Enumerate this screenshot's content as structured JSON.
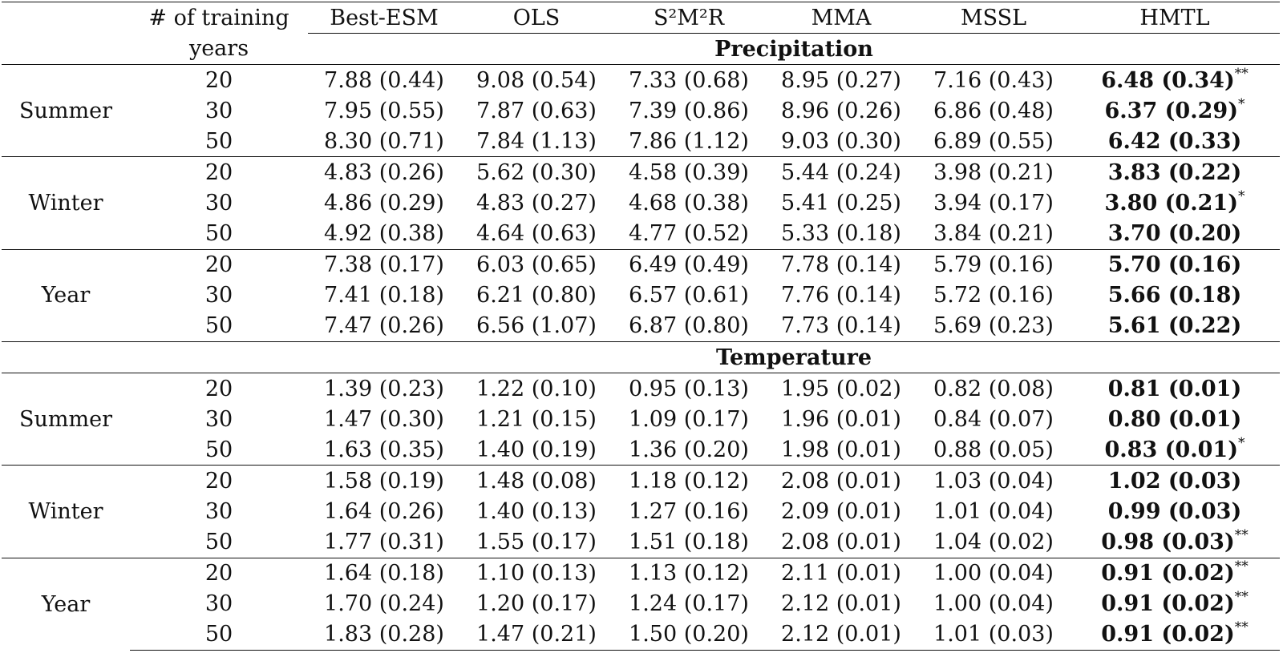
{
  "header": {
    "training_years_line1": "# of training",
    "training_years_line2": "years",
    "methods": [
      "Best-ESM",
      "OLS",
      "S²M²R",
      "MMA",
      "MSSL",
      "HMTL"
    ]
  },
  "sections": [
    {
      "title": "Precipitation",
      "groups": [
        {
          "season": "Summer",
          "rows": [
            {
              "years": "20",
              "values": [
                "7.88 (0.44)",
                "9.08 (0.54)",
                "7.33 (0.68)",
                "8.95 (0.27)",
                "7.16 (0.43)"
              ],
              "best": "6.48 (0.34)",
              "mark": "**"
            },
            {
              "years": "30",
              "values": [
                "7.95 (0.55)",
                "7.87 (0.63)",
                "7.39 (0.86)",
                "8.96 (0.26)",
                "6.86 (0.48)"
              ],
              "best": "6.37 (0.29)",
              "mark": "*"
            },
            {
              "years": "50",
              "values": [
                "8.30 (0.71)",
                "7.84 (1.13)",
                "7.86 (1.12)",
                "9.03 (0.30)",
                "6.89 (0.55)"
              ],
              "best": "6.42 (0.33)",
              "mark": ""
            }
          ]
        },
        {
          "season": "Winter",
          "rows": [
            {
              "years": "20",
              "values": [
                "4.83 (0.26)",
                "5.62 (0.30)",
                "4.58 (0.39)",
                "5.44 (0.24)",
                "3.98 (0.21)"
              ],
              "best": "3.83 (0.22)",
              "mark": ""
            },
            {
              "years": "30",
              "values": [
                "4.86 (0.29)",
                "4.83 (0.27)",
                "4.68 (0.38)",
                "5.41 (0.25)",
                "3.94 (0.17)"
              ],
              "best": "3.80 (0.21)",
              "mark": "*"
            },
            {
              "years": "50",
              "values": [
                "4.92 (0.38)",
                "4.64 (0.63)",
                "4.77 (0.52)",
                "5.33 (0.18)",
                "3.84 (0.21)"
              ],
              "best": "3.70 (0.20)",
              "mark": ""
            }
          ]
        },
        {
          "season": "Year",
          "rows": [
            {
              "years": "20",
              "values": [
                "7.38 (0.17)",
                "6.03 (0.65)",
                "6.49 (0.49)",
                "7.78 (0.14)",
                "5.79 (0.16)"
              ],
              "best": "5.70 (0.16)",
              "mark": ""
            },
            {
              "years": "30",
              "values": [
                "7.41 (0.18)",
                "6.21 (0.80)",
                "6.57 (0.61)",
                "7.76 (0.14)",
                "5.72 (0.16)"
              ],
              "best": "5.66 (0.18)",
              "mark": ""
            },
            {
              "years": "50",
              "values": [
                "7.47 (0.26)",
                "6.56 (1.07)",
                "6.87 (0.80)",
                "7.73 (0.14)",
                "5.69 (0.23)"
              ],
              "best": "5.61 (0.22)",
              "mark": ""
            }
          ]
        }
      ]
    },
    {
      "title": "Temperature",
      "groups": [
        {
          "season": "Summer",
          "rows": [
            {
              "years": "20",
              "values": [
                "1.39 (0.23)",
                "1.22 (0.10)",
                "0.95 (0.13)",
                "1.95 (0.02)",
                "0.82 (0.08)"
              ],
              "best": "0.81 (0.01)",
              "mark": ""
            },
            {
              "years": "30",
              "values": [
                "1.47 (0.30)",
                "1.21 (0.15)",
                "1.09 (0.17)",
                "1.96 (0.01)",
                "0.84 (0.07)"
              ],
              "best": "0.80 (0.01)",
              "mark": ""
            },
            {
              "years": "50",
              "values": [
                "1.63 (0.35)",
                "1.40 (0.19)",
                "1.36 (0.20)",
                "1.98 (0.01)",
                "0.88 (0.05)"
              ],
              "best": "0.83 (0.01)",
              "mark": "*"
            }
          ]
        },
        {
          "season": "Winter",
          "rows": [
            {
              "years": "20",
              "values": [
                "1.58 (0.19)",
                "1.48 (0.08)",
                "1.18 (0.12)",
                "2.08 (0.01)",
                "1.03 (0.04)"
              ],
              "best": "1.02 (0.03)",
              "mark": ""
            },
            {
              "years": "30",
              "values": [
                "1.64 (0.26)",
                "1.40 (0.13)",
                "1.27 (0.16)",
                "2.09 (0.01)",
                "1.01 (0.04)"
              ],
              "best": "0.99 (0.03)",
              "mark": ""
            },
            {
              "years": "50",
              "values": [
                "1.77 (0.31)",
                "1.55 (0.17)",
                "1.51 (0.18)",
                "2.08 (0.01)",
                "1.04 (0.02)"
              ],
              "best": "0.98 (0.03)",
              "mark": "**"
            }
          ]
        },
        {
          "season": "Year",
          "rows": [
            {
              "years": "20",
              "values": [
                "1.64 (0.18)",
                "1.10 (0.13)",
                "1.13 (0.12)",
                "2.11 (0.01)",
                "1.00 (0.04)"
              ],
              "best": "0.91 (0.02)",
              "mark": "**"
            },
            {
              "years": "30",
              "values": [
                "1.70 (0.24)",
                "1.20 (0.17)",
                "1.24 (0.17)",
                "2.12 (0.01)",
                "1.00 (0.04)"
              ],
              "best": "0.91 (0.02)",
              "mark": "**"
            },
            {
              "years": "50",
              "values": [
                "1.83 (0.28)",
                "1.47 (0.21)",
                "1.50 (0.20)",
                "2.12 (0.01)",
                "1.01 (0.03)"
              ],
              "best": "0.91 (0.02)",
              "mark": "**"
            }
          ]
        }
      ]
    }
  ]
}
